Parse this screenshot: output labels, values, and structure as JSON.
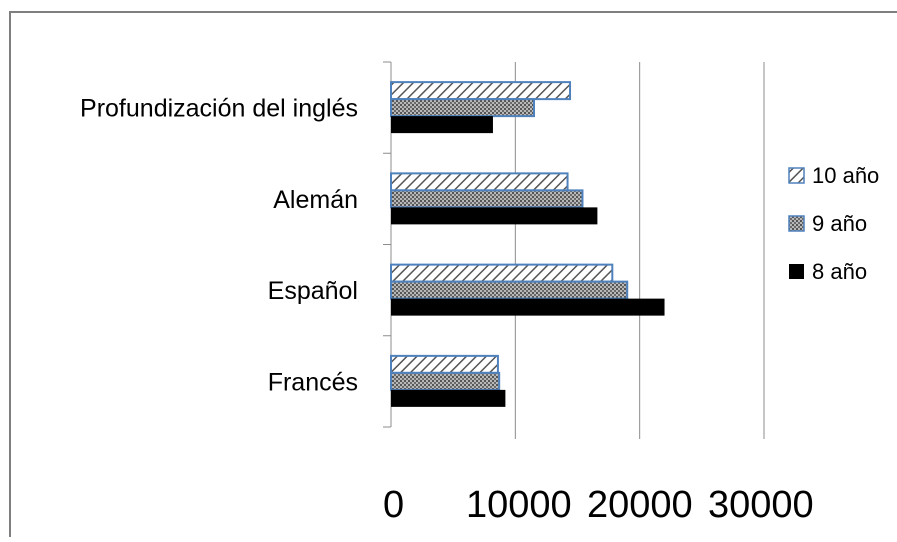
{
  "chart_data": {
    "type": "bar",
    "orientation": "horizontal",
    "categories": [
      "Francés",
      "Español",
      "Alemán",
      "Profundización del inglés"
    ],
    "series": [
      {
        "name": "8 año",
        "values": [
          9200,
          22000,
          16600,
          8200
        ],
        "color": "#000000",
        "pattern": "solid"
      },
      {
        "name": "9 año",
        "values": [
          8700,
          19000,
          15400,
          11500
        ],
        "color": "#9a9a9a",
        "pattern": "dots"
      },
      {
        "name": "10 año",
        "values": [
          8600,
          17800,
          14200,
          14400
        ],
        "color": "#ffffff",
        "pattern": "diagonal-hatch"
      }
    ],
    "x_ticks": [
      "0",
      "10000",
      "20000",
      "30000"
    ],
    "xlim": [
      0,
      30000
    ],
    "grid": true,
    "legend_position": "right",
    "border_color": "#7f7f7f",
    "bar_outline_color": "#4f81bd"
  }
}
